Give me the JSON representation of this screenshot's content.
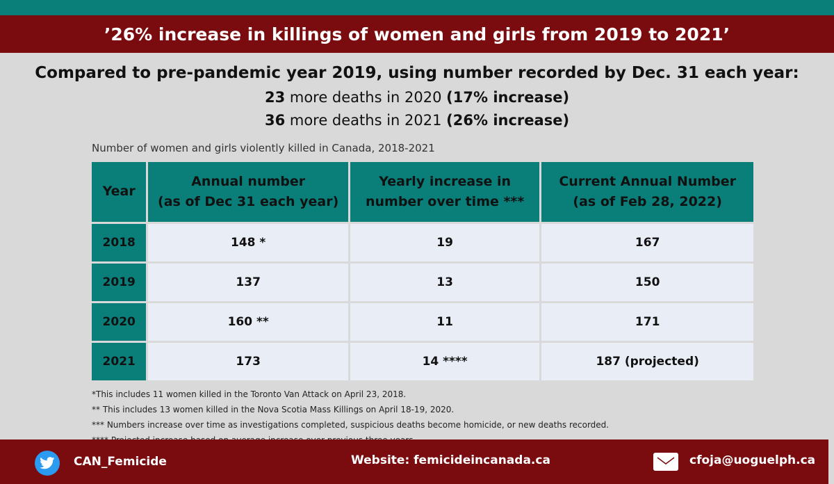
{
  "title": "’26% increase in killings of women and girls from 2019 to 2021’",
  "headline": "Compared to pre-pandemic year 2019, using number recorded by Dec. 31 each year:",
  "comparisons": [
    {
      "count": "23",
      "text": " more deaths in 2020 ",
      "pct": "(17% increase)"
    },
    {
      "count": "36",
      "text": " more deaths in 2021 ",
      "pct": "(26% increase)"
    }
  ],
  "table": {
    "caption": "Number of women and girls violently killed in Canada, 2018-2021",
    "headers": {
      "year": "Year",
      "annual_l1": "Annual number",
      "annual_l2": "(as of Dec 31 each year)",
      "increase_l1": "Yearly increase in",
      "increase_l2": "number over time ***",
      "current_l1": "Current Annual Number",
      "current_l2": "(as of Feb 28, 2022)"
    },
    "rows": [
      {
        "year": "2018",
        "annual": "148 *",
        "increase": "19",
        "current": "167"
      },
      {
        "year": "2019",
        "annual": "137",
        "increase": "13",
        "current": "150"
      },
      {
        "year": "2020",
        "annual": "160 **",
        "increase": "11",
        "current": "171"
      },
      {
        "year": "2021",
        "annual": "173",
        "increase": "14 ****",
        "current": "187 (projected)"
      }
    ]
  },
  "notes": [
    "*This includes 11 women killed in the Toronto Van Attack on April 23, 2018.",
    "** This includes 13 women killed in the Nova Scotia Mass Killings on April 18-19, 2020.",
    "*** Numbers increase over time as investigations completed, suspicious deaths become homicide, or new deaths recorded.",
    "**** Projected increase based on average increase over previous three years."
  ],
  "footer": {
    "twitter_handle": "CAN_Femicide",
    "website": "Website: femicideincanada.ca",
    "email": "cfoja@uoguelph.ca"
  },
  "colors": {
    "teal": "#0a7f7a",
    "maroon": "#7a0b0e",
    "background": "#d9d9d9",
    "cell": "#e9edf5"
  },
  "icons": {
    "twitter": "twitter-icon",
    "mail": "mail-icon"
  }
}
